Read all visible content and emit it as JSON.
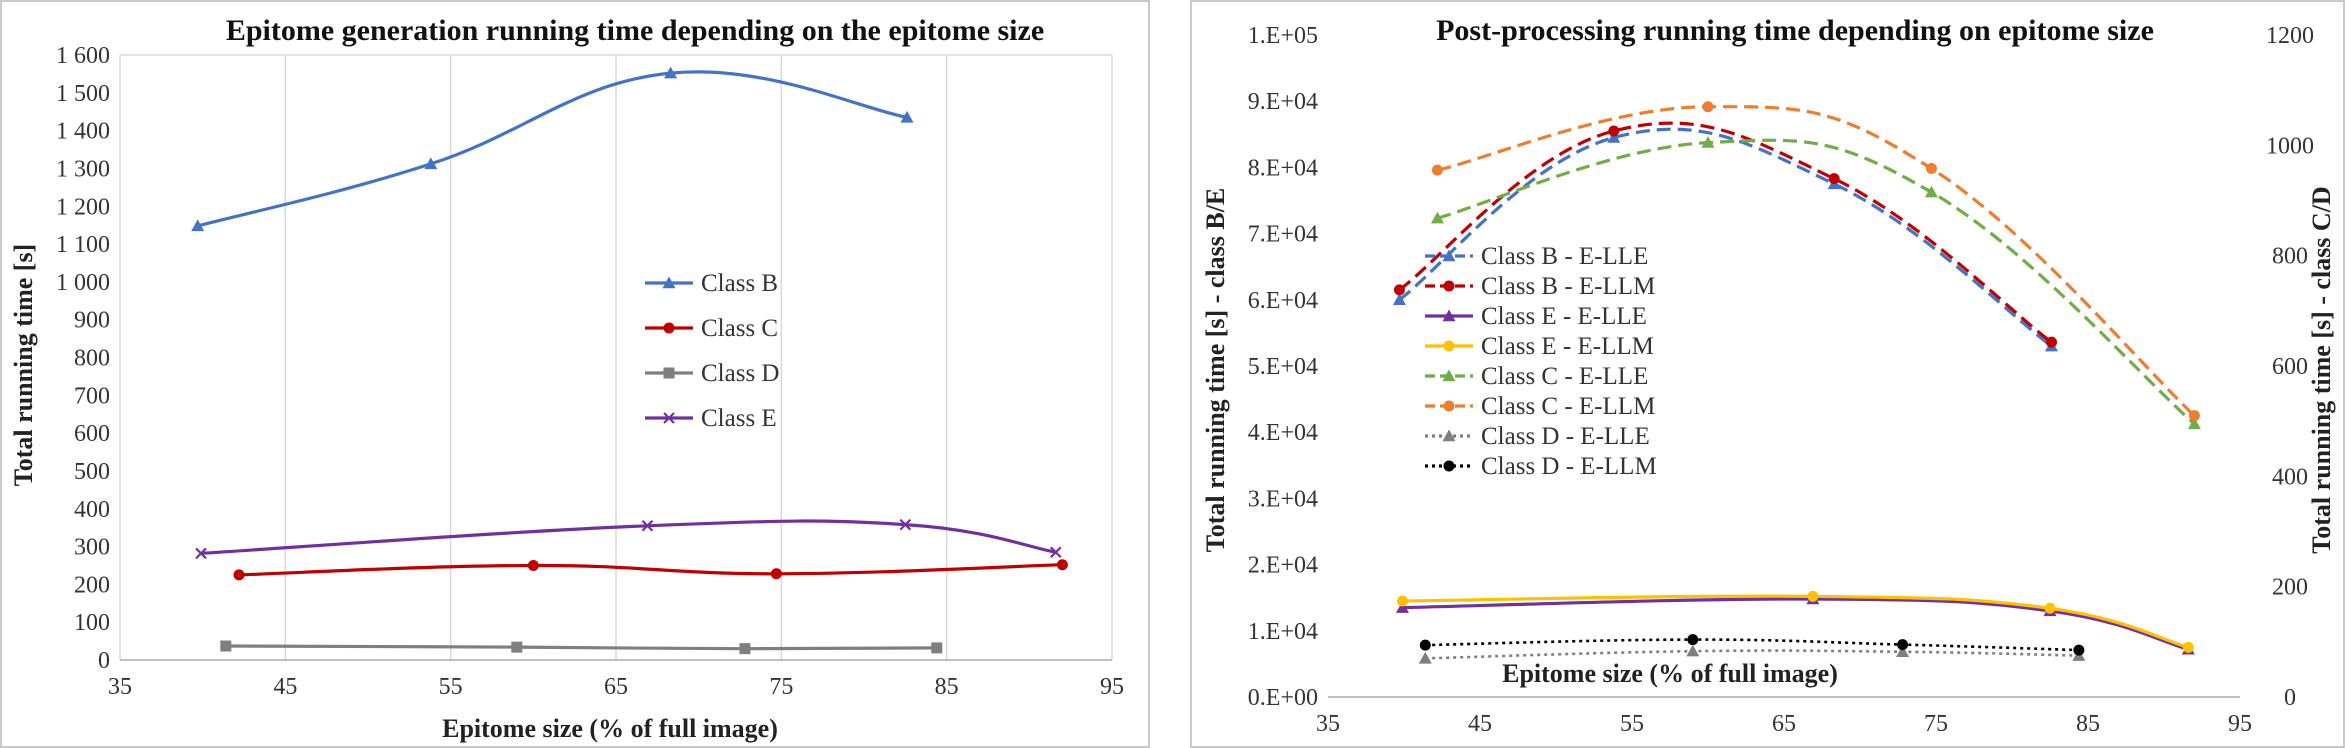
{
  "chart_data": [
    {
      "type": "line",
      "title": "Epitome generation running time depending  on the epitome size",
      "xlabel": "Epitome size (% of full image)",
      "ylabel": "Total running time [s]",
      "xlim": [
        35,
        95
      ],
      "ylim": [
        0,
        1600
      ],
      "x_ticks": [
        35,
        45,
        55,
        65,
        75,
        85,
        95
      ],
      "y_ticks": [
        "0",
        "100",
        "200",
        "300",
        "400",
        "500",
        "600",
        "700",
        "800",
        "900",
        "1 000",
        "1 100",
        "1 200",
        "1 300",
        "1 400",
        "1 500",
        "1 600"
      ],
      "grid": "vertical",
      "legend_position": "center",
      "series": [
        {
          "name": "Class B",
          "color": "#4472c4",
          "marker": "triangle",
          "points": [
            [
              39.7,
              1148
            ],
            [
              53.8,
              1312
            ],
            [
              68.3,
              1552
            ],
            [
              82.6,
              1435
            ]
          ]
        },
        {
          "name": "Class C",
          "color": "#c00000",
          "marker": "circle",
          "points": [
            [
              42.2,
              225
            ],
            [
              60.0,
              250
            ],
            [
              74.7,
              228
            ],
            [
              92.0,
              252
            ]
          ]
        },
        {
          "name": "Class D",
          "color": "#7f7f7f",
          "marker": "square",
          "points": [
            [
              41.4,
              37
            ],
            [
              59.0,
              34
            ],
            [
              72.8,
              30
            ],
            [
              84.4,
              32
            ]
          ]
        },
        {
          "name": "Class E",
          "color": "#7030a0",
          "marker": "x",
          "points": [
            [
              39.9,
              282
            ],
            [
              66.9,
              355
            ],
            [
              82.5,
              358
            ],
            [
              91.6,
              285
            ]
          ]
        }
      ]
    },
    {
      "type": "line",
      "title": "Post-processing running time depending on epitome size",
      "xlabel": "Epitome size (% of full image)",
      "ylabel": "Total running time [s] - class B/E",
      "ylabel_right": "Total running time [s] - class C/D",
      "xlim": [
        35,
        95
      ],
      "ylim": [
        0,
        100000
      ],
      "ylim_right": [
        0,
        1200
      ],
      "x_ticks": [
        35,
        45,
        55,
        65,
        75,
        85,
        95
      ],
      "y_ticks": [
        "0.E+00",
        "1.E+04",
        "2.E+04",
        "3.E+04",
        "4.E+04",
        "5.E+04",
        "6.E+04",
        "7.E+04",
        "8.E+04",
        "9.E+04",
        "1.E+05"
      ],
      "y_ticks_right": [
        "0",
        "200",
        "400",
        "600",
        "800",
        "1000",
        "1200"
      ],
      "grid": "none",
      "legend_position": "left-center",
      "series": [
        {
          "name": "Class B - E-LLE",
          "color": "#4472c4",
          "marker": "triangle",
          "dash": "dashed",
          "axis": "left",
          "points": [
            [
              39.7,
              60000
            ],
            [
              53.8,
              84500
            ],
            [
              68.3,
              77500
            ],
            [
              82.6,
              53000
            ]
          ]
        },
        {
          "name": "Class B - E-LLM",
          "color": "#c00000",
          "marker": "circle",
          "dash": "dashed",
          "axis": "left",
          "points": [
            [
              39.7,
              61500
            ],
            [
              53.8,
              85500
            ],
            [
              68.3,
              78300
            ],
            [
              82.6,
              53600
            ]
          ]
        },
        {
          "name": "Class E - E-LLE",
          "color": "#7030a0",
          "marker": "triangle",
          "dash": "solid",
          "axis": "left",
          "points": [
            [
              39.9,
              13500
            ],
            [
              66.9,
              14800
            ],
            [
              82.5,
              13000
            ],
            [
              91.6,
              7200
            ]
          ]
        },
        {
          "name": "Class E - E-LLM",
          "color": "#ffc000",
          "marker": "circle",
          "dash": "solid",
          "axis": "left",
          "points": [
            [
              39.9,
              14500
            ],
            [
              66.9,
              15200
            ],
            [
              82.5,
              13400
            ],
            [
              91.6,
              7500
            ]
          ]
        },
        {
          "name": "Class C - E-LLE",
          "color": "#70ad47",
          "marker": "triangle",
          "dash": "dashed",
          "axis": "right",
          "points": [
            [
              42.2,
              868
            ],
            [
              60.0,
              1005
            ],
            [
              74.7,
              915
            ],
            [
              92.0,
              495
            ]
          ]
        },
        {
          "name": "Class C - E-LLM",
          "color": "#ed7d31",
          "marker": "circle",
          "dash": "dashed",
          "axis": "right",
          "points": [
            [
              42.2,
              955
            ],
            [
              60.0,
              1070
            ],
            [
              74.7,
              958
            ],
            [
              92.0,
              510
            ]
          ]
        },
        {
          "name": "Class D - E-LLE",
          "color": "#7f7f7f",
          "marker": "triangle",
          "dash": "dotted",
          "axis": "right",
          "points": [
            [
              41.4,
              70
            ],
            [
              59.0,
              83
            ],
            [
              72.8,
              82
            ],
            [
              84.4,
              75
            ]
          ]
        },
        {
          "name": "Class D - E-LLM",
          "color": "#000000",
          "marker": "circle",
          "dash": "dotted",
          "axis": "right",
          "points": [
            [
              41.4,
              94
            ],
            [
              59.0,
              104
            ],
            [
              72.8,
              95
            ],
            [
              84.4,
              85
            ]
          ]
        }
      ]
    }
  ]
}
